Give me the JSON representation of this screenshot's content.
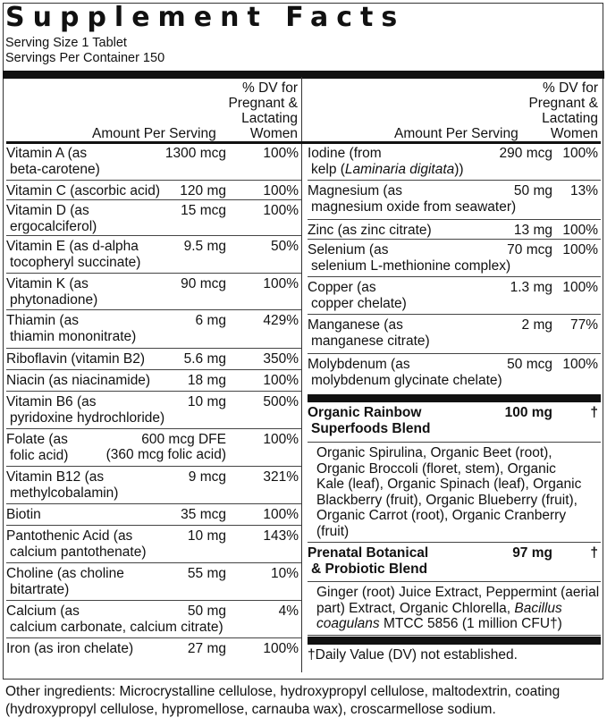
{
  "title": "Supplement Facts",
  "serving_size": "Serving Size 1 Tablet",
  "servings_per_container": "Servings Per Container 150",
  "header": {
    "amount": "Amount Per Serving",
    "dv": [
      "% DV for",
      "Pregnant &",
      "Lactating",
      "Women"
    ]
  },
  "left_rows": [
    {
      "name": [
        "Vitamin A (as",
        "beta-carotene)"
      ],
      "amount": "1300 mcg",
      "dv": "100%"
    },
    {
      "name": [
        "Vitamin C (ascorbic acid)"
      ],
      "amount": "120 mg",
      "dv": "100%"
    },
    {
      "name": [
        "Vitamin D (as",
        "ergocalciferol)"
      ],
      "amount": "15 mcg",
      "dv": "100%"
    },
    {
      "name": [
        "Vitamin E (as d-alpha",
        "tocopheryl succinate)"
      ],
      "amount": "9.5 mg",
      "dv": "50%"
    },
    {
      "name": [
        "Vitamin K (as",
        "phytonadione)"
      ],
      "amount": "90 mcg",
      "dv": "100%"
    },
    {
      "name": [
        "Thiamin (as",
        "thiamin mononitrate)"
      ],
      "amount": "6 mg",
      "dv": "429%"
    },
    {
      "name": [
        "Riboflavin (vitamin B2)"
      ],
      "amount": "5.6 mg",
      "dv": "350%"
    },
    {
      "name": [
        "Niacin (as niacinamide)"
      ],
      "amount": "18 mg",
      "dv": "100%"
    },
    {
      "name": [
        "Vitamin B6 (as",
        "pyridoxine hydrochloride)"
      ],
      "amount": "10 mg",
      "dv": "500%"
    },
    {
      "name": [
        "Folate (as",
        "folic acid)"
      ],
      "amount": "600 mcg DFE",
      "amount2": "(360 mcg folic acid)",
      "dv": "100%"
    },
    {
      "name": [
        "Vitamin B12 (as",
        "methylcobalamin)"
      ],
      "amount": "9 mcg",
      "dv": "321%"
    },
    {
      "name": [
        "Biotin"
      ],
      "amount": "35 mcg",
      "dv": "100%"
    },
    {
      "name": [
        "Pantothenic Acid (as",
        "calcium pantothenate)"
      ],
      "amount": "10 mg",
      "dv": "143%"
    },
    {
      "name": [
        "Choline (as choline",
        "bitartrate)"
      ],
      "amount": "55 mg",
      "dv": "10%"
    },
    {
      "name": [
        "Calcium (as",
        "calcium carbonate, calcium citrate)"
      ],
      "amount": "50 mg",
      "dv": "4%"
    },
    {
      "name": [
        "Iron (as iron chelate)"
      ],
      "amount": "27 mg",
      "dv": "100%"
    }
  ],
  "right_rows": [
    {
      "name": [
        "Iodine (from",
        [
          {
            "t": "kelp ("
          },
          {
            "t": "Laminaria digitata",
            "i": true
          },
          {
            "t": "))"
          }
        ]
      ],
      "amount": "290 mcg",
      "dv": "100%"
    },
    {
      "name": [
        "Magnesium (as",
        "magnesium oxide from seawater)"
      ],
      "amount": "50 mg",
      "dv": "13%"
    },
    {
      "name": [
        "Zinc (as zinc citrate)"
      ],
      "amount": "13 mg",
      "dv": "100%"
    },
    {
      "name": [
        "Selenium (as",
        "selenium L-methionine complex)"
      ],
      "amount": "70 mcg",
      "dv": "100%"
    },
    {
      "name": [
        "Copper (as",
        "copper chelate)"
      ],
      "amount": "1.3 mg",
      "dv": "100%"
    },
    {
      "name": [
        "Manganese (as",
        "manganese citrate)"
      ],
      "amount": "2 mg",
      "dv": "77%"
    },
    {
      "name": [
        "Molybdenum (as",
        "molybdenum glycinate chelate)"
      ],
      "amount": "50 mcg",
      "dv": "100%"
    }
  ],
  "blends": [
    {
      "name": [
        "Organic Rainbow",
        "Superfoods Blend"
      ],
      "amount": "100 mg",
      "dv": "†",
      "ingredients": [
        [
          "Organic Spirulina, Organic Beet (root),"
        ],
        [
          "Organic Broccoli (floret, stem), Organic"
        ],
        [
          "Kale (leaf), Organic Spinach (leaf), Organic"
        ],
        [
          "Blackberry (fruit), Organic Blueberry (fruit),"
        ],
        [
          "Organic Carrot (root), Organic Cranberry"
        ],
        [
          "(fruit)"
        ]
      ]
    },
    {
      "name": [
        "Prenatal Botanical",
        "& Probiotic Blend"
      ],
      "amount": "97 mg",
      "dv": "†",
      "ingredients": [
        [
          "Ginger (root) Juice Extract, Peppermint (aerial"
        ],
        [
          {
            "t": "part) Extract, Organic Chlorella, "
          },
          {
            "t": "Bacillus",
            "i": true
          }
        ],
        [
          {
            "t": "coagulans",
            "i": true
          },
          {
            "t": " MTCC 5856 (1 million CFU†)"
          }
        ]
      ]
    }
  ],
  "footnote": "†Daily Value (DV) not established.",
  "other_ingredients": "Other ingredients: Microcrystalline cellulose, hydroxypropyl cellulose, maltodextrin, coating (hydroxypropyl cellulose, hypromellose, carnauba wax), croscarmellose sodium."
}
